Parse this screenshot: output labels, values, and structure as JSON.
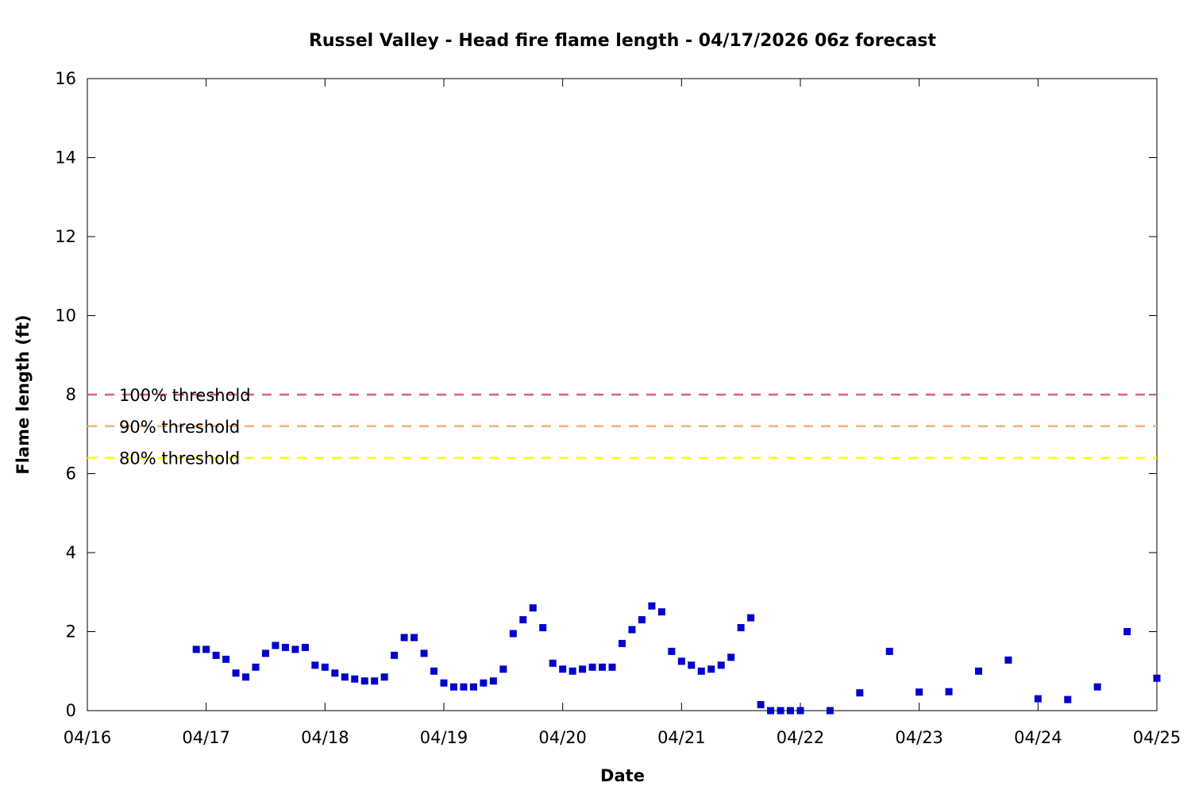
{
  "chart_data": {
    "type": "scatter",
    "title": "Russel Valley - Head fire flame length - 04/17/2026 06z forecast",
    "xlabel": "Date",
    "ylabel": "Flame length (ft)",
    "xlim": [
      "04/16",
      "04/25"
    ],
    "ylim": [
      0,
      16
    ],
    "x_ticks": [
      "04/16",
      "04/17",
      "04/18",
      "04/19",
      "04/20",
      "04/21",
      "04/22",
      "04/23",
      "04/24",
      "04/25"
    ],
    "y_ticks": [
      0,
      2,
      4,
      6,
      8,
      10,
      12,
      14,
      16
    ],
    "grid": false,
    "legend_placement": "top-left",
    "point_color": "#0000cc",
    "thresholds": [
      {
        "label": "100% threshold",
        "value": 8.0,
        "color": "#d95f7e"
      },
      {
        "label": "90% threshold",
        "value": 7.2,
        "color": "#f4b079"
      },
      {
        "label": "80% threshold",
        "value": 6.4,
        "color": "#ffff00"
      }
    ],
    "series": [
      {
        "x": [
          "04/16 22:00",
          "04/17 00:00",
          "04/17 02:00",
          "04/17 04:00",
          "04/17 06:00",
          "04/17 08:00",
          "04/17 10:00",
          "04/17 12:00",
          "04/17 14:00",
          "04/17 16:00",
          "04/17 18:00",
          "04/17 20:00",
          "04/17 22:00",
          "04/18 00:00",
          "04/18 02:00",
          "04/18 04:00",
          "04/18 06:00",
          "04/18 08:00",
          "04/18 10:00",
          "04/18 12:00",
          "04/18 14:00",
          "04/18 16:00",
          "04/18 18:00",
          "04/18 20:00",
          "04/18 22:00",
          "04/19 00:00",
          "04/19 02:00",
          "04/19 04:00",
          "04/19 06:00",
          "04/19 08:00",
          "04/19 10:00",
          "04/19 12:00",
          "04/19 14:00",
          "04/19 16:00",
          "04/19 18:00",
          "04/19 20:00",
          "04/19 22:00",
          "04/20 00:00",
          "04/20 02:00",
          "04/20 04:00",
          "04/20 06:00",
          "04/20 08:00",
          "04/20 10:00",
          "04/20 12:00",
          "04/20 14:00",
          "04/20 16:00",
          "04/20 18:00",
          "04/20 20:00",
          "04/20 22:00",
          "04/21 00:00",
          "04/21 02:00",
          "04/21 04:00",
          "04/21 06:00",
          "04/21 08:00",
          "04/21 10:00",
          "04/21 12:00",
          "04/21 14:00",
          "04/21 16:00",
          "04/21 18:00",
          "04/21 20:00",
          "04/21 22:00",
          "04/22 00:00",
          "04/22 06:00",
          "04/22 12:00",
          "04/22 18:00",
          "04/23 00:00",
          "04/23 06:00",
          "04/23 12:00",
          "04/23 18:00",
          "04/24 00:00",
          "04/24 06:00",
          "04/24 12:00",
          "04/24 18:00",
          "04/25 00:00"
        ],
        "y": [
          1.55,
          1.55,
          1.4,
          1.3,
          0.95,
          0.85,
          1.1,
          1.45,
          1.65,
          1.6,
          1.55,
          1.6,
          1.15,
          1.1,
          0.95,
          0.85,
          0.8,
          0.75,
          0.75,
          0.85,
          1.4,
          1.85,
          1.85,
          1.45,
          1.0,
          0.7,
          0.6,
          0.6,
          0.6,
          0.7,
          0.75,
          1.05,
          1.95,
          2.3,
          2.6,
          2.1,
          1.2,
          1.05,
          1.0,
          1.05,
          1.1,
          1.1,
          1.1,
          1.7,
          2.05,
          2.3,
          2.65,
          2.5,
          1.5,
          1.25,
          1.15,
          1.0,
          1.05,
          1.15,
          1.35,
          2.1,
          2.35,
          0.15,
          0.0,
          0.0,
          0.0,
          0.0,
          0.0,
          0.45,
          1.5,
          0.47,
          0.48,
          1.0,
          1.28,
          0.3,
          0.28,
          0.6,
          2.0,
          0.82
        ]
      }
    ]
  }
}
